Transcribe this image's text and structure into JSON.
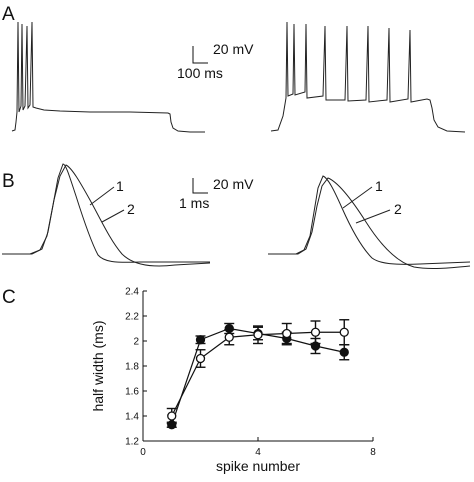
{
  "panels": {
    "a": {
      "letter": "A"
    },
    "b": {
      "letter": "B"
    },
    "c": {
      "letter": "C"
    }
  },
  "scale_bars": {
    "a_voltage": "20 mV",
    "a_time": "100 ms",
    "b_voltage": "20 mV",
    "b_time": "1 ms"
  },
  "spike_labels": [
    "1",
    "2",
    "1",
    "2"
  ],
  "chart_data": {
    "type": "line",
    "xlabel": "spike number",
    "ylabel": "half width (ms)",
    "xlim": [
      0,
      8
    ],
    "ylim": [
      1.2,
      2.4
    ],
    "xticks": [
      0,
      4,
      8
    ],
    "yticks": [
      1.2,
      1.4,
      1.6,
      1.8,
      2.0,
      2.2,
      2.4
    ],
    "ytick_labels": [
      "1.2",
      "1.4",
      "1.6",
      "1.8",
      "2",
      "2.2",
      "2.4"
    ],
    "grid": false,
    "series": [
      {
        "marker": "filled-circle",
        "x": [
          1,
          2,
          3,
          4,
          5,
          6,
          7
        ],
        "y": [
          1.33,
          2.01,
          2.1,
          2.06,
          2.02,
          1.96,
          1.91
        ],
        "err": [
          0.02,
          0.03,
          0.04,
          0.05,
          0.05,
          0.06,
          0.06
        ]
      },
      {
        "marker": "open-circle",
        "x": [
          1,
          2,
          3,
          4,
          5,
          6,
          7
        ],
        "y": [
          1.4,
          1.86,
          2.03,
          2.05,
          2.06,
          2.07,
          2.07
        ],
        "err": [
          0.06,
          0.07,
          0.06,
          0.07,
          0.08,
          0.09,
          0.1
        ]
      }
    ]
  }
}
